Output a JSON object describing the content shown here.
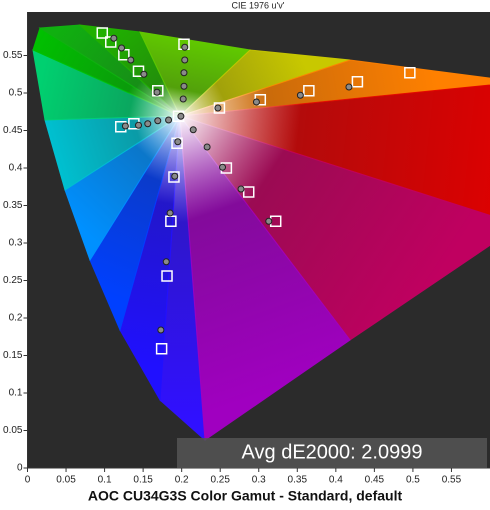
{
  "chart_data": {
    "type": "scatter",
    "title": "CIE 1976 u'v'",
    "caption": "AOC CU34G3S Color Gamut - Standard, default",
    "annotation": "Avg dE2000: 2.0999",
    "xlim": [
      0,
      0.6
    ],
    "ylim": [
      0,
      0.608
    ],
    "xticks": [
      0,
      0.05,
      0.1,
      0.15,
      0.2,
      0.25,
      0.3,
      0.35,
      0.4,
      0.45,
      0.5,
      0.55
    ],
    "yticks": [
      0,
      0.05,
      0.1,
      0.15,
      0.2,
      0.25,
      0.3,
      0.35,
      0.4,
      0.45,
      0.5,
      0.55
    ],
    "series": [
      {
        "marker": "square",
        "color": "#ffffff",
        "x": [
          0.097,
          0.108,
          0.125,
          0.144,
          0.169,
          0.121,
          0.138,
          0.203,
          0.196,
          0.194,
          0.19,
          0.186,
          0.181,
          0.174,
          0.249,
          0.302,
          0.365,
          0.428,
          0.496,
          0.258,
          0.287,
          0.322
        ],
        "y": [
          0.58,
          0.568,
          0.551,
          0.529,
          0.503,
          0.455,
          0.459,
          0.565,
          0.469,
          0.433,
          0.388,
          0.329,
          0.256,
          0.159,
          0.48,
          0.491,
          0.503,
          0.515,
          0.527,
          0.4,
          0.368,
          0.329
        ]
      },
      {
        "marker": "circle",
        "color": "#8a8a8a",
        "x": [
          0.112,
          0.122,
          0.134,
          0.151,
          0.168,
          0.127,
          0.144,
          0.156,
          0.169,
          0.183,
          0.204,
          0.204,
          0.203,
          0.203,
          0.202,
          0.199,
          0.195,
          0.191,
          0.185,
          0.18,
          0.173,
          0.247,
          0.297,
          0.354,
          0.417,
          0.215,
          0.233,
          0.253,
          0.277,
          0.313
        ],
        "y": [
          0.573,
          0.56,
          0.544,
          0.525,
          0.501,
          0.456,
          0.457,
          0.459,
          0.463,
          0.464,
          0.561,
          0.544,
          0.527,
          0.509,
          0.492,
          0.469,
          0.435,
          0.389,
          0.34,
          0.275,
          0.184,
          0.48,
          0.488,
          0.497,
          0.508,
          0.451,
          0.428,
          0.401,
          0.372,
          0.329
        ]
      }
    ]
  }
}
